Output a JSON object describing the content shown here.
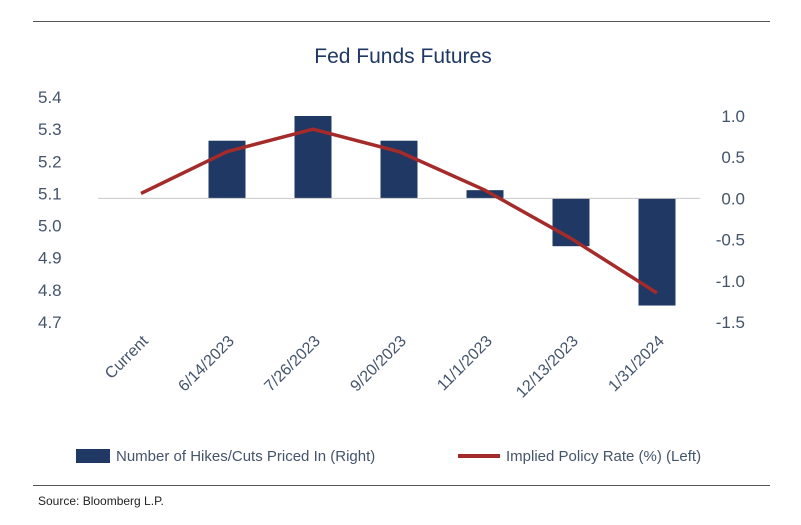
{
  "chart_data": {
    "type": "bar",
    "title": "Fed Funds Futures",
    "categories": [
      "Current",
      "6/14/2023",
      "7/26/2023",
      "9/20/2023",
      "11/1/2023",
      "12/13/2023",
      "1/31/2024"
    ],
    "series": [
      {
        "name": "Number of Hikes/Cuts Priced In (Right)",
        "type": "bar",
        "axis": "right",
        "color": "#1f3864",
        "values": [
          0,
          0.7,
          1.0,
          0.7,
          0.1,
          -0.58,
          -1.3
        ]
      },
      {
        "name": "Implied Policy Rate (%) (Left)",
        "type": "line",
        "axis": "left",
        "color": "#a52a2a",
        "values": [
          5.1,
          5.23,
          5.3,
          5.23,
          5.11,
          4.96,
          4.79
        ]
      }
    ],
    "left_axis": {
      "min": 4.7,
      "max": 5.4,
      "ticks": [
        "5.4",
        "5.3",
        "5.2",
        "5.1",
        "5.0",
        "4.9",
        "4.8",
        "4.7"
      ]
    },
    "right_axis": {
      "min": -1.5,
      "max": 1.0,
      "ticks": [
        "1.0",
        "0.5",
        "0.0",
        "-0.5",
        "-1.0",
        "-1.5"
      ]
    },
    "grid": false,
    "legend_position": "bottom"
  },
  "source": "Source: Bloomberg L.P."
}
